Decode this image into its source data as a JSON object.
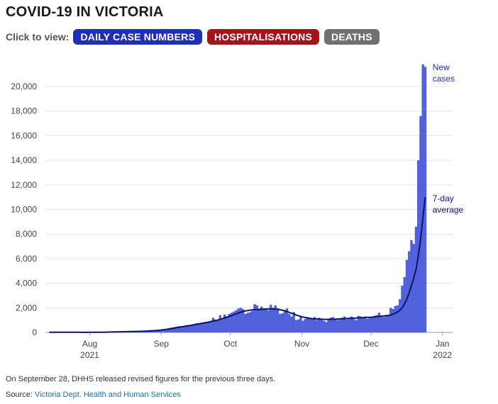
{
  "header": {
    "title": "COVID-19 IN VICTORIA"
  },
  "controls": {
    "label": "Click to view:",
    "buttons": [
      {
        "label": "DAILY CASE NUMBERS",
        "color": "#1f2fb8"
      },
      {
        "label": "HOSPITALISATIONS",
        "color": "#a3141c"
      },
      {
        "label": "DEATHS",
        "color": "#707070"
      }
    ]
  },
  "footer": {
    "note": "On September 28, DHHS released revised figures for the previous three days.",
    "source_label": "Source:",
    "source_name": "Victoria Dept. Health and Human Services"
  },
  "chart_data": {
    "type": "bar",
    "start_date": "2021-07-14",
    "y_ticks": [
      0,
      2000,
      4000,
      6000,
      8000,
      10000,
      12000,
      14000,
      16000,
      18000,
      20000
    ],
    "y_tick_labels": [
      "0",
      "2,000",
      "4,000",
      "6,000",
      "8,000",
      "10,000",
      "12,000",
      "14,000",
      "16,000",
      "18,000",
      "20,000"
    ],
    "ylim": [
      0,
      22000
    ],
    "x_ticks": [
      {
        "date": "2021-08-01",
        "label": "Aug",
        "sublabel": "2021"
      },
      {
        "date": "2021-09-01",
        "label": "Sep",
        "sublabel": ""
      },
      {
        "date": "2021-10-01",
        "label": "Oct",
        "sublabel": ""
      },
      {
        "date": "2021-11-01",
        "label": "Nov",
        "sublabel": ""
      },
      {
        "date": "2021-12-01",
        "label": "Dec",
        "sublabel": ""
      },
      {
        "date": "2022-01-01",
        "label": "Jan",
        "sublabel": "2022"
      }
    ],
    "grid": true,
    "series": [
      {
        "name": "New cases",
        "color": "#5161db",
        "values": [
          15,
          19,
          20,
          25,
          22,
          20,
          18,
          17,
          15,
          14,
          12,
          11,
          10,
          8,
          6,
          5,
          4,
          5,
          6,
          8,
          12,
          15,
          18,
          20,
          25,
          30,
          35,
          40,
          45,
          50,
          55,
          60,
          57,
          61,
          65,
          70,
          75,
          80,
          85,
          90,
          95,
          100,
          110,
          120,
          130,
          150,
          170,
          190,
          210,
          240,
          280,
          310,
          350,
          400,
          420,
          460,
          500,
          510,
          520,
          560,
          600,
          590,
          640,
          700,
          750,
          760,
          800,
          830,
          870,
          900,
          950,
          1200,
          1050,
          1000,
          1400,
          1100,
          1450,
          1300,
          1500,
          1600,
          1700,
          1800,
          1950,
          2000,
          1900,
          1500,
          1600,
          1650,
          1750,
          2300,
          2200,
          1950,
          2100,
          1900,
          1850,
          1800,
          2250,
          2000,
          2200,
          1950,
          1500,
          1550,
          1700,
          1950,
          1500,
          1300,
          1650,
          1000,
          1050,
          1300,
          950,
          1100,
          1250,
          1200,
          1100,
          1250,
          1000,
          1200,
          1100,
          950,
          850,
          1100,
          1200,
          1250,
          1100,
          1000,
          1050,
          1200,
          1300,
          1050,
          1100,
          1300,
          1100,
          1000,
          1350,
          1300,
          1200,
          1300,
          1100,
          1200,
          1250,
          1350,
          1400,
          1600,
          1350,
          1250,
          1350,
          1400,
          2000,
          1900,
          2150,
          2200,
          2700,
          3800,
          4500,
          5900,
          6600,
          7500,
          7200,
          8600,
          14000,
          17600,
          21800,
          21600
        ]
      },
      {
        "name": "7-day average",
        "color": "#0b1563",
        "values": [
          8,
          9,
          10,
          12,
          14,
          15,
          15,
          15,
          14,
          13,
          12,
          11,
          10,
          9,
          8,
          7,
          7,
          7,
          8,
          9,
          10,
          12,
          14,
          17,
          20,
          24,
          28,
          32,
          37,
          42,
          47,
          52,
          56,
          60,
          64,
          68,
          73,
          78,
          83,
          88,
          93,
          100,
          108,
          117,
          126,
          138,
          152,
          167,
          185,
          205,
          228,
          255,
          283,
          315,
          345,
          378,
          410,
          442,
          472,
          505,
          535,
          565,
          600,
          635,
          670,
          700,
          730,
          760,
          790,
          830,
          870,
          920,
          960,
          1000,
          1060,
          1120,
          1180,
          1240,
          1300,
          1370,
          1440,
          1510,
          1580,
          1640,
          1700,
          1740,
          1780,
          1810,
          1830,
          1850,
          1860,
          1870,
          1880,
          1890,
          1900,
          1905,
          1910,
          1910,
          1900,
          1880,
          1850,
          1810,
          1760,
          1700,
          1630,
          1560,
          1490,
          1420,
          1360,
          1300,
          1250,
          1210,
          1170,
          1140,
          1120,
          1100,
          1090,
          1080,
          1070,
          1060,
          1060,
          1060,
          1060,
          1070,
          1080,
          1090,
          1100,
          1110,
          1120,
          1130,
          1140,
          1150,
          1160,
          1170,
          1180,
          1190,
          1200,
          1210,
          1220,
          1230,
          1240,
          1260,
          1280,
          1300,
          1320,
          1340,
          1360,
          1380,
          1420,
          1480,
          1560,
          1660,
          1800,
          2000,
          2300,
          2700,
          3200,
          3800,
          4400,
          5100,
          6200,
          7600,
          9300,
          11000
        ]
      }
    ],
    "annotations": [
      {
        "text": [
          "New",
          "cases"
        ],
        "series": "New cases"
      },
      {
        "text": [
          "7-day",
          "average"
        ],
        "series": "7-day average"
      }
    ]
  }
}
